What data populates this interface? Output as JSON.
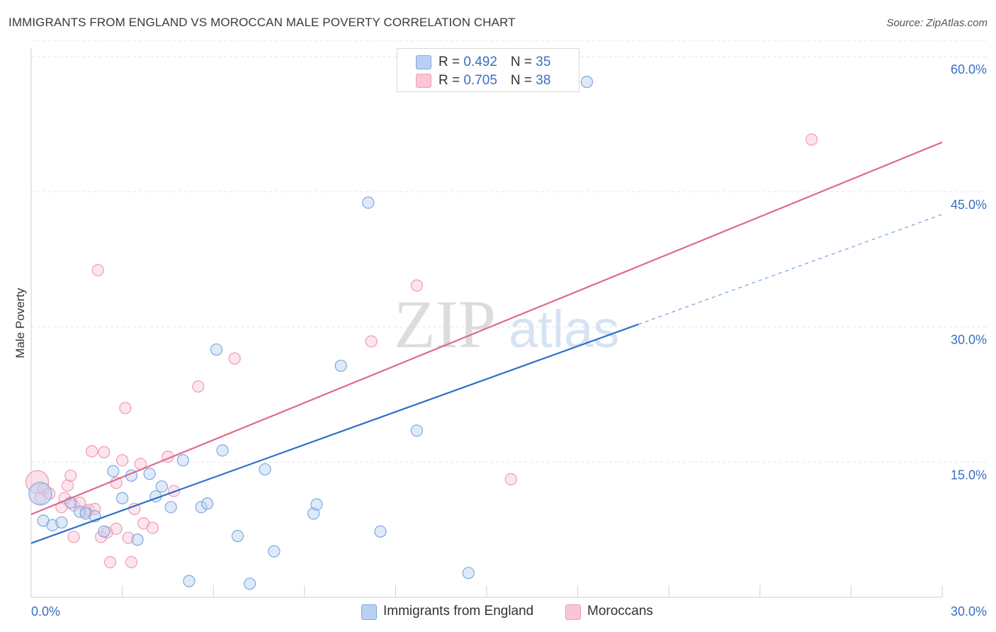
{
  "title": "IMMIGRANTS FROM ENGLAND VS MOROCCAN MALE POVERTY CORRELATION CHART",
  "source": "Source: ZipAtlas.com",
  "legend": {
    "row1": {
      "r_label": "R = ",
      "r_value": "0.492",
      "n_label": "N = ",
      "n_value": "35"
    },
    "row2": {
      "r_label": "R = ",
      "r_value": "0.705",
      "n_label": "N = ",
      "n_value": "38"
    }
  },
  "bottom_legend": {
    "series1": "Immigrants from England",
    "series2": "Moroccans"
  },
  "colors": {
    "blue_fill": "#b9d0f2",
    "blue_stroke": "#7fa8df",
    "blue_line": "#2f6fcc",
    "pink_fill": "#f8c6d6",
    "pink_stroke": "#ef9bb7",
    "pink_line": "#e0698f",
    "accent_text": "#3a6fc4"
  },
  "chart_data": {
    "type": "scatter",
    "title": "IMMIGRANTS FROM ENGLAND VS MOROCCAN MALE POVERTY CORRELATION CHART",
    "xlabel": "",
    "ylabel": "Male Poverty",
    "xlim": [
      0,
      30
    ],
    "ylim": [
      0,
      60
    ],
    "x_tick_labels": [
      "0.0%",
      "30.0%"
    ],
    "y_ticks": [
      15,
      30,
      45,
      60
    ],
    "y_tick_labels": [
      "15.0%",
      "30.0%",
      "45.0%",
      "60.0%"
    ],
    "watermark": {
      "zip": "ZIP",
      "atlas": "atlas"
    },
    "series": [
      {
        "name": "Immigrants from England",
        "r": 0.492,
        "n": 35,
        "trend": {
          "x0": 0,
          "y0": 6.0,
          "x1": 20.0,
          "y1": 30.3,
          "dash_to_x": 30.0,
          "dash_to_y": 42.5
        },
        "points": [
          {
            "x": 0.3,
            "y": 11.5,
            "big": true
          },
          {
            "x": 0.4,
            "y": 8.5
          },
          {
            "x": 0.7,
            "y": 8.0
          },
          {
            "x": 1.0,
            "y": 8.3
          },
          {
            "x": 1.3,
            "y": 10.5
          },
          {
            "x": 1.6,
            "y": 9.5
          },
          {
            "x": 1.8,
            "y": 9.3
          },
          {
            "x": 2.1,
            "y": 9.0
          },
          {
            "x": 2.4,
            "y": 7.3
          },
          {
            "x": 2.7,
            "y": 14.0
          },
          {
            "x": 3.0,
            "y": 11.0
          },
          {
            "x": 3.3,
            "y": 13.5
          },
          {
            "x": 3.5,
            "y": 6.4
          },
          {
            "x": 3.9,
            "y": 13.7
          },
          {
            "x": 4.1,
            "y": 11.2
          },
          {
            "x": 4.3,
            "y": 12.3
          },
          {
            "x": 4.6,
            "y": 10.0
          },
          {
            "x": 5.0,
            "y": 15.2
          },
          {
            "x": 5.6,
            "y": 10.0
          },
          {
            "x": 5.8,
            "y": 10.4
          },
          {
            "x": 6.1,
            "y": 27.5
          },
          {
            "x": 6.3,
            "y": 16.3
          },
          {
            "x": 6.8,
            "y": 6.8
          },
          {
            "x": 7.2,
            "y": 1.5
          },
          {
            "x": 7.7,
            "y": 14.2
          },
          {
            "x": 8.0,
            "y": 5.1
          },
          {
            "x": 9.3,
            "y": 9.3
          },
          {
            "x": 9.4,
            "y": 10.3
          },
          {
            "x": 10.2,
            "y": 25.7
          },
          {
            "x": 11.1,
            "y": 43.8
          },
          {
            "x": 11.5,
            "y": 7.3
          },
          {
            "x": 12.7,
            "y": 18.5
          },
          {
            "x": 14.4,
            "y": 2.7
          },
          {
            "x": 18.3,
            "y": 57.2
          },
          {
            "x": 5.2,
            "y": 1.8
          }
        ]
      },
      {
        "name": "Moroccans",
        "r": 0.705,
        "n": 38,
        "trend": {
          "x0": 0,
          "y0": 9.2,
          "x1": 30.0,
          "y1": 50.5
        },
        "points": [
          {
            "x": 0.2,
            "y": 12.8,
            "big": true
          },
          {
            "x": 0.4,
            "y": 12.0
          },
          {
            "x": 0.6,
            "y": 11.5
          },
          {
            "x": 1.1,
            "y": 11.0
          },
          {
            "x": 1.4,
            "y": 10.2
          },
          {
            "x": 1.6,
            "y": 10.5
          },
          {
            "x": 1.2,
            "y": 12.4
          },
          {
            "x": 1.3,
            "y": 13.5
          },
          {
            "x": 1.4,
            "y": 6.7
          },
          {
            "x": 1.9,
            "y": 9.7
          },
          {
            "x": 2.1,
            "y": 9.8
          },
          {
            "x": 2.0,
            "y": 16.2
          },
          {
            "x": 2.2,
            "y": 36.3
          },
          {
            "x": 2.3,
            "y": 6.7
          },
          {
            "x": 2.5,
            "y": 7.2
          },
          {
            "x": 2.4,
            "y": 16.1
          },
          {
            "x": 2.6,
            "y": 3.9
          },
          {
            "x": 2.8,
            "y": 12.7
          },
          {
            "x": 2.8,
            "y": 7.6
          },
          {
            "x": 3.0,
            "y": 15.2
          },
          {
            "x": 3.1,
            "y": 21.0
          },
          {
            "x": 3.2,
            "y": 6.6
          },
          {
            "x": 3.3,
            "y": 3.9
          },
          {
            "x": 3.4,
            "y": 9.8
          },
          {
            "x": 3.6,
            "y": 14.8
          },
          {
            "x": 3.7,
            "y": 8.2
          },
          {
            "x": 4.0,
            "y": 7.7
          },
          {
            "x": 4.5,
            "y": 15.6
          },
          {
            "x": 4.7,
            "y": 11.8
          },
          {
            "x": 5.5,
            "y": 23.4
          },
          {
            "x": 6.7,
            "y": 26.5
          },
          {
            "x": 11.2,
            "y": 28.4
          },
          {
            "x": 12.7,
            "y": 34.6
          },
          {
            "x": 15.8,
            "y": 13.1
          },
          {
            "x": 25.7,
            "y": 50.8
          },
          {
            "x": 1.0,
            "y": 10.0
          },
          {
            "x": 0.3,
            "y": 11.0
          },
          {
            "x": 1.8,
            "y": 9.5
          }
        ]
      }
    ]
  }
}
